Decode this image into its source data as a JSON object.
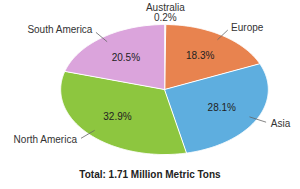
{
  "chart_data": {
    "type": "pie",
    "title": "Total: 1.71 Million Metric Tons",
    "categories": [
      "Australia",
      "Europe",
      "Asia",
      "North America",
      "South America"
    ],
    "values": [
      0.2,
      18.3,
      28.1,
      32.9,
      20.5
    ],
    "value_labels": [
      "0.2%",
      "18.3%",
      "28.1%",
      "32.9%",
      "20.5%"
    ],
    "colors": [
      "#f2e45c",
      "#e8834f",
      "#5eaedf",
      "#8dc63f",
      "#dba4dc"
    ],
    "data_labels": true
  }
}
